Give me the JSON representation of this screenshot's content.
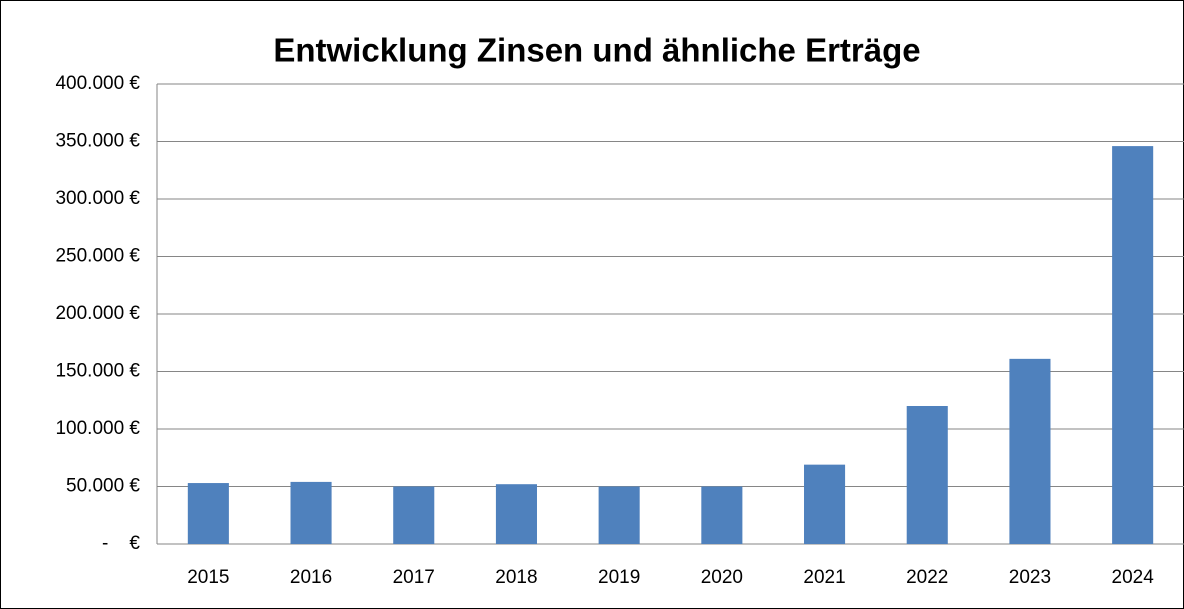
{
  "chart_data": {
    "type": "bar",
    "title": "Entwicklung Zinsen und ähnliche Erträge",
    "categories": [
      "2015",
      "2016",
      "2017",
      "2018",
      "2019",
      "2020",
      "2021",
      "2022",
      "2023",
      "2024"
    ],
    "values": [
      53000,
      54000,
      50000,
      52000,
      50000,
      50000,
      69000,
      120000,
      161000,
      346000
    ],
    "color": "#4f81bd",
    "ylim": [
      0,
      400000
    ],
    "yticks": [
      {
        "value": 0,
        "label": "-    €"
      },
      {
        "value": 50000,
        "label": "50.000 €"
      },
      {
        "value": 100000,
        "label": "100.000 €"
      },
      {
        "value": 150000,
        "label": "150.000 €"
      },
      {
        "value": 200000,
        "label": "200.000 €"
      },
      {
        "value": 250000,
        "label": "250.000 €"
      },
      {
        "value": 300000,
        "label": "300.000 €"
      },
      {
        "value": 350000,
        "label": "350.000 €"
      },
      {
        "value": 400000,
        "label": "400.000 €"
      }
    ],
    "grid": true
  }
}
